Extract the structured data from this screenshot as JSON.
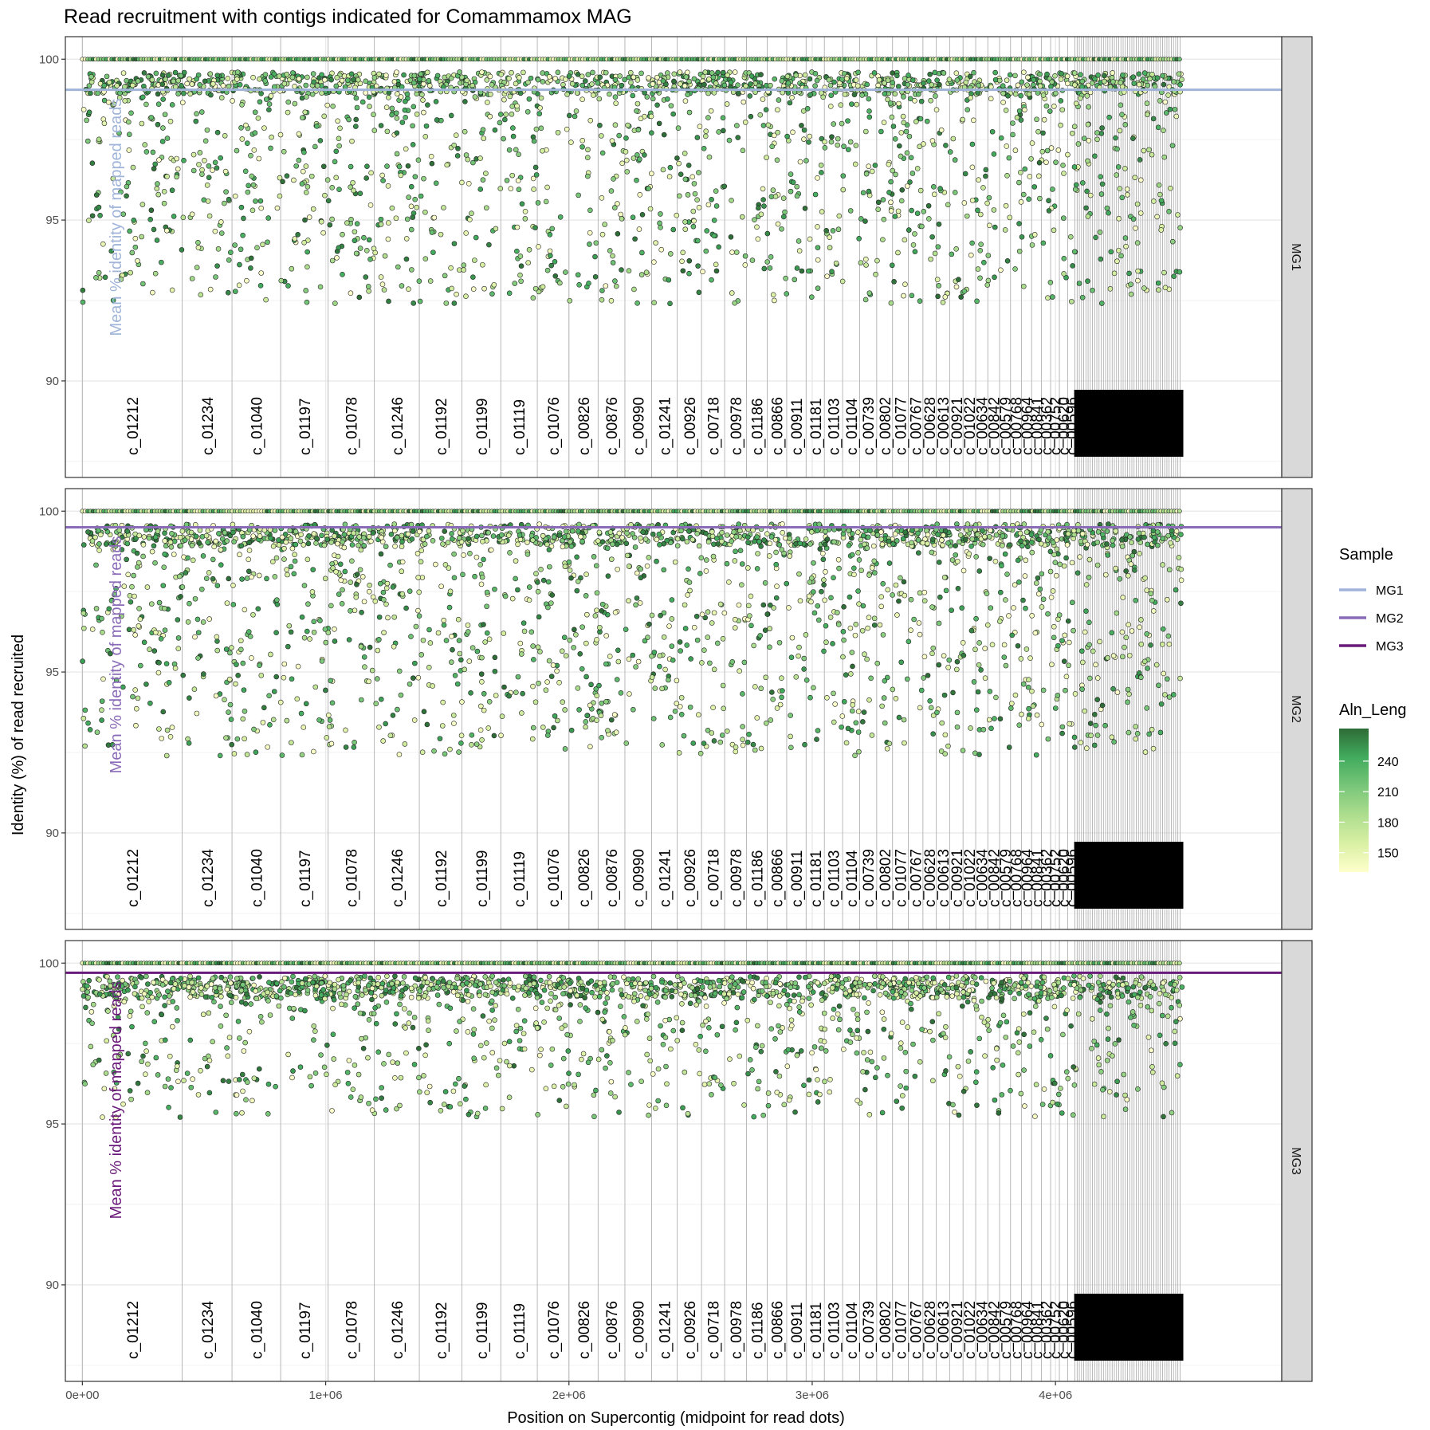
{
  "chart_data": {
    "type": "scatter",
    "title": "Read recruitment with contigs indicated for Comammamox MAG",
    "xlabel": "Position on Supercontig (midpoint for read dots)",
    "ylabel": "Identity (%) of read recruited",
    "xlim": [
      -70000,
      4930000
    ],
    "ylim": [
      87.0,
      100.7
    ],
    "x_ticks": [
      {
        "value": 0,
        "label": "0e+00"
      },
      {
        "value": 1000000,
        "label": "1e+06"
      },
      {
        "value": 2000000,
        "label": "2e+06"
      },
      {
        "value": 3000000,
        "label": "3e+06"
      },
      {
        "value": 4000000,
        "label": "4e+06"
      }
    ],
    "y_ticks": [
      {
        "value": 90,
        "label": "90"
      },
      {
        "value": 95,
        "label": "95"
      },
      {
        "value": 100,
        "label": "100"
      }
    ],
    "grid": true,
    "facets": [
      {
        "label": "MG1",
        "mean_identity": 99.05,
        "mean_line_color": "#9fb4d8",
        "mean_label": "Mean % identity of mapped reads"
      },
      {
        "label": "MG2",
        "mean_identity": 99.5,
        "mean_line_color": "#8a6bb8",
        "mean_label": "Mean % identity of mapped reads"
      },
      {
        "label": "MG3",
        "mean_identity": 99.7,
        "mean_line_color": "#6a1a7a",
        "mean_label": "Mean % identity of mapped reads"
      }
    ],
    "contigs": [
      {
        "name": "c_01212",
        "start": 0
      },
      {
        "name": "c_01234",
        "start": 410000
      },
      {
        "name": "c_01040",
        "start": 615000
      },
      {
        "name": "c_01197",
        "start": 815000
      },
      {
        "name": "c_01078",
        "start": 1010000
      },
      {
        "name": "c_01246",
        "start": 1200000
      },
      {
        "name": "c_01192",
        "start": 1385000
      },
      {
        "name": "c_01199",
        "start": 1560000
      },
      {
        "name": "c_01119",
        "start": 1720000
      },
      {
        "name": "c_01076",
        "start": 1870000
      },
      {
        "name": "c_00826",
        "start": 2000000
      },
      {
        "name": "c_00876",
        "start": 2120000
      },
      {
        "name": "c_00990",
        "start": 2230000
      },
      {
        "name": "c_01241",
        "start": 2340000
      },
      {
        "name": "c_00926",
        "start": 2445000
      },
      {
        "name": "c_00718",
        "start": 2545000
      },
      {
        "name": "c_00978",
        "start": 2640000
      },
      {
        "name": "c_01186",
        "start": 2730000
      },
      {
        "name": "c_00866",
        "start": 2815000
      },
      {
        "name": "c_00911",
        "start": 2895000
      },
      {
        "name": "c_01181",
        "start": 2975000
      },
      {
        "name": "c_01103",
        "start": 3050000
      },
      {
        "name": "c_01104",
        "start": 3125000
      },
      {
        "name": "c_00739",
        "start": 3195000
      },
      {
        "name": "c_00802",
        "start": 3265000
      },
      {
        "name": "c_01077",
        "start": 3330000
      },
      {
        "name": "c_00767",
        "start": 3395000
      },
      {
        "name": "c_00628",
        "start": 3455000
      },
      {
        "name": "c_00613",
        "start": 3510000
      },
      {
        "name": "c_00921",
        "start": 3565000
      },
      {
        "name": "c_01022",
        "start": 3620000
      },
      {
        "name": "c_00634",
        "start": 3672000
      },
      {
        "name": "c_00842",
        "start": 3722000
      },
      {
        "name": "c_00579",
        "start": 3770000
      },
      {
        "name": "c_00768",
        "start": 3815000
      },
      {
        "name": "c_00964",
        "start": 3860000
      },
      {
        "name": "c_00841",
        "start": 3902000
      },
      {
        "name": "c_00362",
        "start": 3942000
      },
      {
        "name": "c_00752",
        "start": 3980000
      },
      {
        "name": "c_00620",
        "start": 4016000
      },
      {
        "name": "c_00596",
        "start": 4050000
      }
    ],
    "dense_contig_region": [
      4080000,
      4520000
    ],
    "supercontig_end": 4520000,
    "points": "several thousand reads per facet; identity mostly 93-100% with dense band near 99-100%",
    "color_scale": {
      "variable": "Aln_Leng",
      "low_color": "#ffffcc",
      "high_color": "#2e6b36",
      "ticks": [
        150,
        180,
        210,
        240
      ]
    },
    "legend_sample": {
      "title": "Sample",
      "entries": [
        {
          "label": "MG1",
          "color": "#9fb4d8"
        },
        {
          "label": "MG2",
          "color": "#8a6bb8"
        },
        {
          "label": "MG3",
          "color": "#6a1a7a"
        }
      ]
    },
    "legend_color": {
      "title": "Aln_Leng",
      "ticks": [
        "150",
        "180",
        "210",
        "240"
      ]
    }
  }
}
